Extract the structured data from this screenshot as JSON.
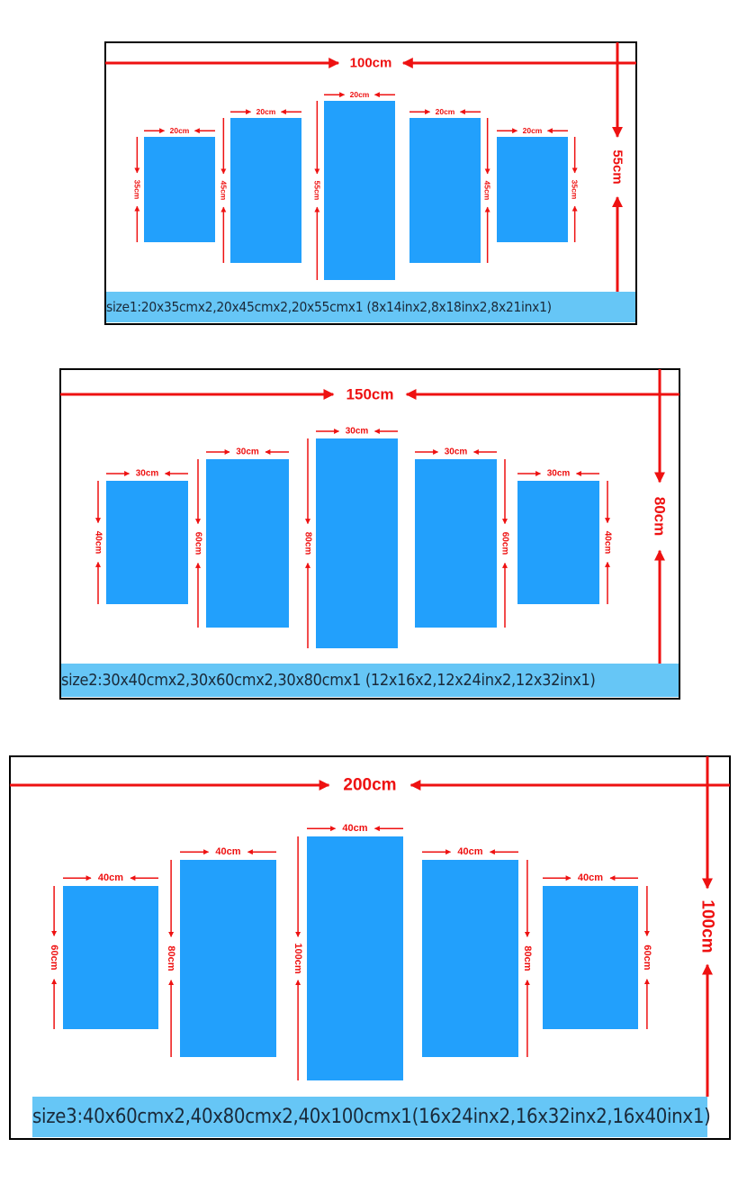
{
  "colors": {
    "panel": "#22a0fc",
    "arrow": "#ee1111",
    "caption_bg": "#66c6f6",
    "frame": "#000000"
  },
  "sizes": [
    {
      "total_width": "100cm",
      "total_height": "55cm",
      "caption": "size1:20x35cmx2,20x45cmx2,20x55cmx1 (8x14inx2,8x18inx2,8x21inx1)",
      "pieces": [
        {
          "width": "20cm",
          "height": "35cm"
        },
        {
          "width": "20cm",
          "height": "45cm"
        },
        {
          "width": "20cm",
          "height": "55cm"
        },
        {
          "width": "20cm",
          "height": "45cm"
        },
        {
          "width": "20cm",
          "height": "35cm"
        }
      ]
    },
    {
      "total_width": "150cm",
      "total_height": "80cm",
      "caption": "size2:30x40cmx2,30x60cmx2,30x80cmx1 (12x16x2,12x24inx2,12x32inx1)",
      "pieces": [
        {
          "width": "30cm",
          "height": "40cm"
        },
        {
          "width": "30cm",
          "height": "60cm"
        },
        {
          "width": "30cm",
          "height": "80cm"
        },
        {
          "width": "30cm",
          "height": "60cm"
        },
        {
          "width": "30cm",
          "height": "40cm"
        }
      ]
    },
    {
      "total_width": "200cm",
      "total_height": "100cm",
      "caption": "size3:40x60cmx2,40x80cmx2,40x100cmx1(16x24inx2,16x32inx2,16x40inx1)",
      "pieces": [
        {
          "width": "40cm",
          "height": "60cm"
        },
        {
          "width": "40cm",
          "height": "80cm"
        },
        {
          "width": "40cm",
          "height": "100cm"
        },
        {
          "width": "40cm",
          "height": "80cm"
        },
        {
          "width": "40cm",
          "height": "60cm"
        }
      ]
    }
  ]
}
